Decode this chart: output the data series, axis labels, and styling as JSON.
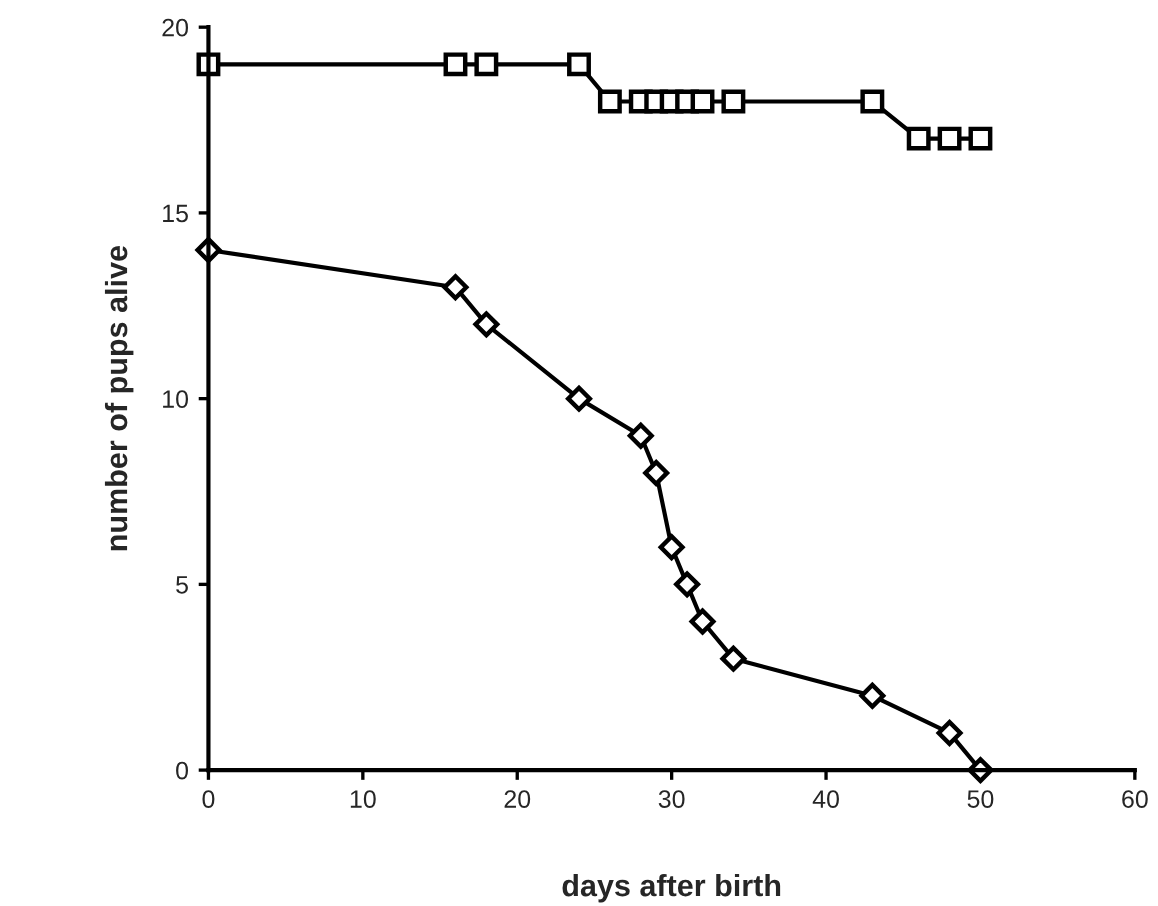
{
  "chart_data": {
    "type": "line",
    "xlabel": "days after birth",
    "ylabel": "number of pups alive",
    "xlim": [
      0,
      60
    ],
    "xticks": [
      0,
      10,
      20,
      30,
      40,
      50,
      60
    ],
    "ylim": [
      0,
      20
    ],
    "yticks": [
      0,
      5,
      10,
      15,
      20
    ],
    "grid": false,
    "legend": false,
    "line_style": "solid",
    "series": [
      {
        "color": "#000000",
        "marker": "square",
        "x": [
          0,
          16,
          18,
          24,
          26,
          28,
          29,
          30,
          31,
          32,
          34,
          43,
          46,
          48,
          50
        ],
        "values": [
          19,
          19,
          19,
          19,
          18,
          18,
          18,
          18,
          18,
          18,
          18,
          18,
          17,
          17,
          17
        ]
      },
      {
        "color": "#000000",
        "marker": "diamond",
        "x": [
          0,
          16,
          18,
          24,
          28,
          29,
          30,
          31,
          32,
          34,
          43,
          48,
          50
        ],
        "values": [
          14,
          13,
          12,
          10,
          9,
          8,
          6,
          5,
          4,
          3,
          2,
          1,
          0
        ]
      }
    ]
  }
}
